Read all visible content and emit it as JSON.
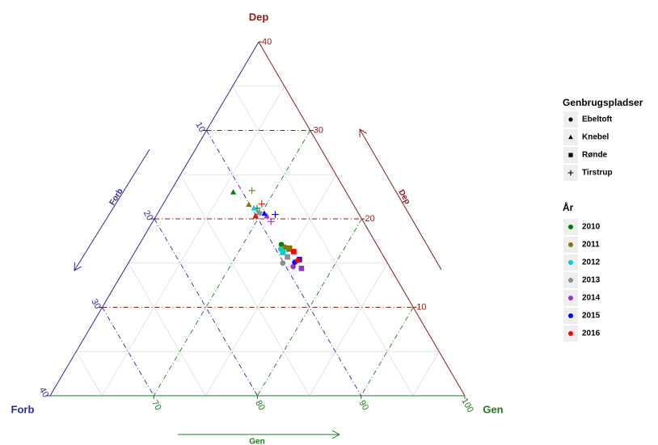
{
  "chart_data": {
    "type": "ternary",
    "axes": {
      "dep": {
        "label": "Dep",
        "color": "#8b1a1a",
        "lim": [
          0,
          40
        ],
        "ticks": [
          10,
          20,
          30,
          40
        ]
      },
      "gen": {
        "label": "Gen",
        "color": "#1e7b1e",
        "lim": [
          60,
          100
        ],
        "ticks": [
          70,
          80,
          90,
          100
        ]
      },
      "forb": {
        "label": "Forb",
        "color": "#2b2b9a",
        "lim": [
          0,
          40
        ],
        "ticks": [
          10,
          20,
          30,
          40
        ]
      }
    },
    "grid": true,
    "categories_title": "Genbrugspladser",
    "categories": [
      "Ebeltoft",
      "Knebel",
      "Rønde",
      "Tirstrup"
    ],
    "markers": [
      "circle",
      "triangle",
      "square",
      "plus"
    ],
    "series_title": "År",
    "series": [
      {
        "name": "2010",
        "color": "#008000",
        "dep": [
          17.1,
          23.0,
          16.6,
          21.2
        ],
        "gen": [
          73.7,
          66.1,
          74.7,
          69.3
        ],
        "forb": [
          9.2,
          10.9,
          8.7,
          9.5
        ]
      },
      {
        "name": "2011",
        "color": "#8b7500",
        "dep": [
          16.8,
          21.6,
          16.7,
          23.2
        ],
        "gen": [
          74.2,
          68.3,
          74.7,
          67.8
        ],
        "forb": [
          9.0,
          10.1,
          8.6,
          9.0
        ]
      },
      {
        "name": "2012",
        "color": "#00ced1",
        "dep": [
          16.6,
          21.2,
          16.2,
          20.8
        ],
        "gen": [
          73.9,
          69.0,
          74.3,
          69.7
        ],
        "forb": [
          9.5,
          9.8,
          9.5,
          9.5
        ]
      },
      {
        "name": "2013",
        "color": "#8c8c8c",
        "dep": [
          15.0,
          20.8,
          15.7,
          20.5
        ],
        "gen": [
          74.9,
          69.7,
          75.0,
          69.7
        ],
        "forb": [
          10.1,
          9.5,
          9.3,
          9.8
        ]
      },
      {
        "name": "2014",
        "color": "#9932cc",
        "dep": [
          14.6,
          20.3,
          14.4,
          19.7
        ],
        "gen": [
          76.1,
          70.7,
          77.0,
          71.4
        ],
        "forb": [
          9.3,
          9.0,
          8.6,
          8.9
        ]
      },
      {
        "name": "2015",
        "color": "#0000ff",
        "dep": [
          15.1,
          20.6,
          15.4,
          20.5
        ],
        "gen": [
          76.0,
          70.3,
          76.3,
          71.4
        ],
        "forb": [
          8.9,
          9.1,
          8.3,
          8.1
        ]
      },
      {
        "name": "2016",
        "color": "#ff0000",
        "dep": [
          15.3,
          20.3,
          16.3,
          21.7
        ],
        "gen": [
          76.2,
          69.6,
          75.3,
          69.5
        ],
        "forb": [
          8.5,
          10.1,
          8.4,
          8.8
        ]
      }
    ]
  }
}
